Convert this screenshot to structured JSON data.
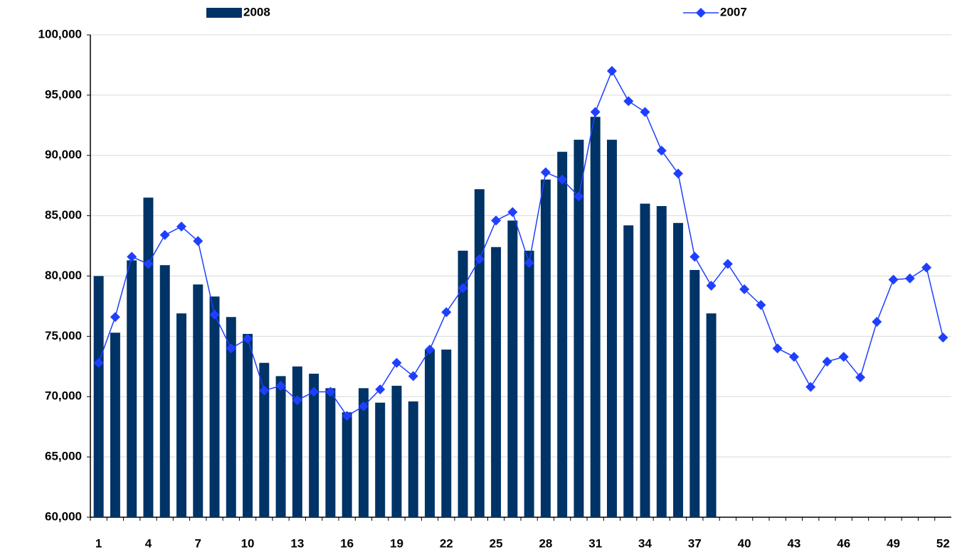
{
  "chart_data": {
    "type": "bar-line",
    "categories": [
      1,
      null,
      null,
      4,
      null,
      null,
      7,
      null,
      null,
      10,
      null,
      null,
      13,
      null,
      null,
      16,
      null,
      null,
      19,
      null,
      null,
      22,
      null,
      null,
      25,
      null,
      null,
      28,
      null,
      null,
      31,
      null,
      null,
      34,
      null,
      null,
      37,
      null,
      null,
      40,
      null,
      null,
      43,
      null,
      null,
      46,
      null,
      null,
      49,
      null,
      null,
      52
    ],
    "series": [
      {
        "name": "2008",
        "type": "bar",
        "color": "#003366",
        "values": [
          80000,
          75300,
          81300,
          86500,
          80900,
          76900,
          79300,
          78300,
          76600,
          75200,
          72800,
          71700,
          72500,
          71900,
          70700,
          68700,
          70700,
          69500,
          70900,
          69600,
          73900,
          73900,
          82100,
          87200,
          82400,
          84600,
          82100,
          88000,
          90300,
          91300,
          93200,
          91300,
          84200,
          86000,
          85800,
          84400,
          80500,
          76900,
          null,
          null,
          null,
          null,
          null,
          null,
          null,
          null,
          null,
          null,
          null,
          null,
          null,
          null
        ]
      },
      {
        "name": "2007",
        "type": "line",
        "color": "#1f3fff",
        "values": [
          72800,
          76600,
          81600,
          81000,
          83400,
          84100,
          82900,
          76800,
          74000,
          74800,
          70500,
          70900,
          69700,
          70400,
          70400,
          68400,
          69200,
          70600,
          72800,
          71700,
          73900,
          77000,
          79000,
          81400,
          84600,
          85300,
          81100,
          88600,
          88000,
          86600,
          93600,
          97000,
          94500,
          93600,
          90400,
          88500,
          81600,
          79200,
          81000,
          78900,
          77600,
          74000,
          73300,
          70800,
          72900,
          73300,
          71600,
          76200,
          79700,
          79800,
          80700,
          74900
        ]
      }
    ],
    "ylim": [
      60000,
      100000
    ],
    "yticks": [
      {
        "value": 60000,
        "label": "60,000"
      },
      {
        "value": 65000,
        "label": "65,000"
      },
      {
        "value": 70000,
        "label": "70,000"
      },
      {
        "value": 75000,
        "label": "75,000"
      },
      {
        "value": 80000,
        "label": "80,000"
      },
      {
        "value": 85000,
        "label": "85,000"
      },
      {
        "value": 90000,
        "label": "90,000"
      },
      {
        "value": 95000,
        "label": "95,000"
      },
      {
        "value": 100000,
        "label": "100,000"
      }
    ],
    "grid": true
  }
}
